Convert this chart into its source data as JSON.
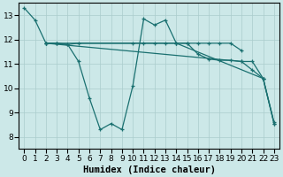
{
  "bg_color": "#cce8e8",
  "line_color": "#1a7070",
  "xlabel": "Humidex (Indice chaleur)",
  "xlabel_fontsize": 7.5,
  "xlim": [
    -0.5,
    23.5
  ],
  "ylim": [
    7.5,
    13.5
  ],
  "xticks": [
    0,
    1,
    2,
    3,
    4,
    5,
    6,
    7,
    8,
    9,
    10,
    11,
    12,
    13,
    14,
    15,
    16,
    17,
    18,
    19,
    20,
    21,
    22,
    23
  ],
  "yticks": [
    8,
    9,
    10,
    11,
    12,
    13
  ],
  "tick_fontsize": 6.5,
  "lines": [
    {
      "x": [
        0,
        1,
        2,
        3,
        4,
        5,
        6,
        7,
        8,
        9,
        10,
        11,
        12,
        13,
        14,
        22,
        23
      ],
      "y": [
        13.3,
        12.8,
        11.85,
        11.85,
        11.8,
        11.1,
        9.6,
        8.3,
        8.55,
        8.3,
        10.1,
        12.85,
        12.6,
        12.8,
        11.85,
        10.4,
        8.6
      ]
    },
    {
      "x": [
        2,
        3,
        4,
        5,
        14,
        15,
        16,
        17,
        18,
        19,
        20
      ],
      "y": [
        11.85,
        11.85,
        11.8,
        11.85,
        11.85,
        11.85,
        11.85,
        11.85,
        11.85,
        11.85,
        11.55
      ]
    },
    {
      "x": [
        2,
        3,
        10,
        11,
        12,
        13,
        14,
        15,
        16,
        17,
        18,
        19,
        20,
        21,
        22,
        23
      ],
      "y": [
        11.85,
        11.85,
        11.85,
        11.85,
        11.85,
        11.85,
        11.85,
        11.85,
        11.4,
        11.2,
        11.15,
        11.15,
        11.1,
        11.1,
        10.4,
        8.55
      ]
    },
    {
      "x": [
        2,
        20,
        21,
        22,
        23
      ],
      "y": [
        11.85,
        11.1,
        10.75,
        10.4,
        8.55
      ]
    }
  ]
}
